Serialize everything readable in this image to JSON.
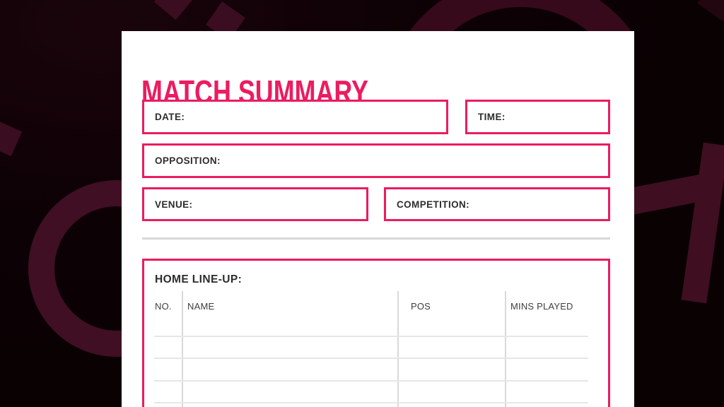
{
  "title": "MATCH SUMMARY",
  "fields": {
    "date": {
      "label": "DATE:"
    },
    "time": {
      "label": "TIME:"
    },
    "opposition": {
      "label": "OPPOSITION:"
    },
    "venue": {
      "label": "VENUE:"
    },
    "competition": {
      "label": "COMPETITION:"
    }
  },
  "lineup": {
    "title": "HOME LINE-UP:",
    "columns": [
      "NO.",
      "NAME",
      "POS",
      "MINS PLAYED"
    ],
    "visible_empty_rows": 4
  },
  "colors": {
    "accent_pink": "#EB1C5F",
    "page_background": "#0C0104",
    "decor_maroon": "#3B0D20",
    "card_background": "#FFFFFF",
    "label_text": "#2D2D2D",
    "table_header_text": "#3E3E3E",
    "grid_line": "#E3E3E3",
    "divider_line": "#D8D8D8"
  }
}
